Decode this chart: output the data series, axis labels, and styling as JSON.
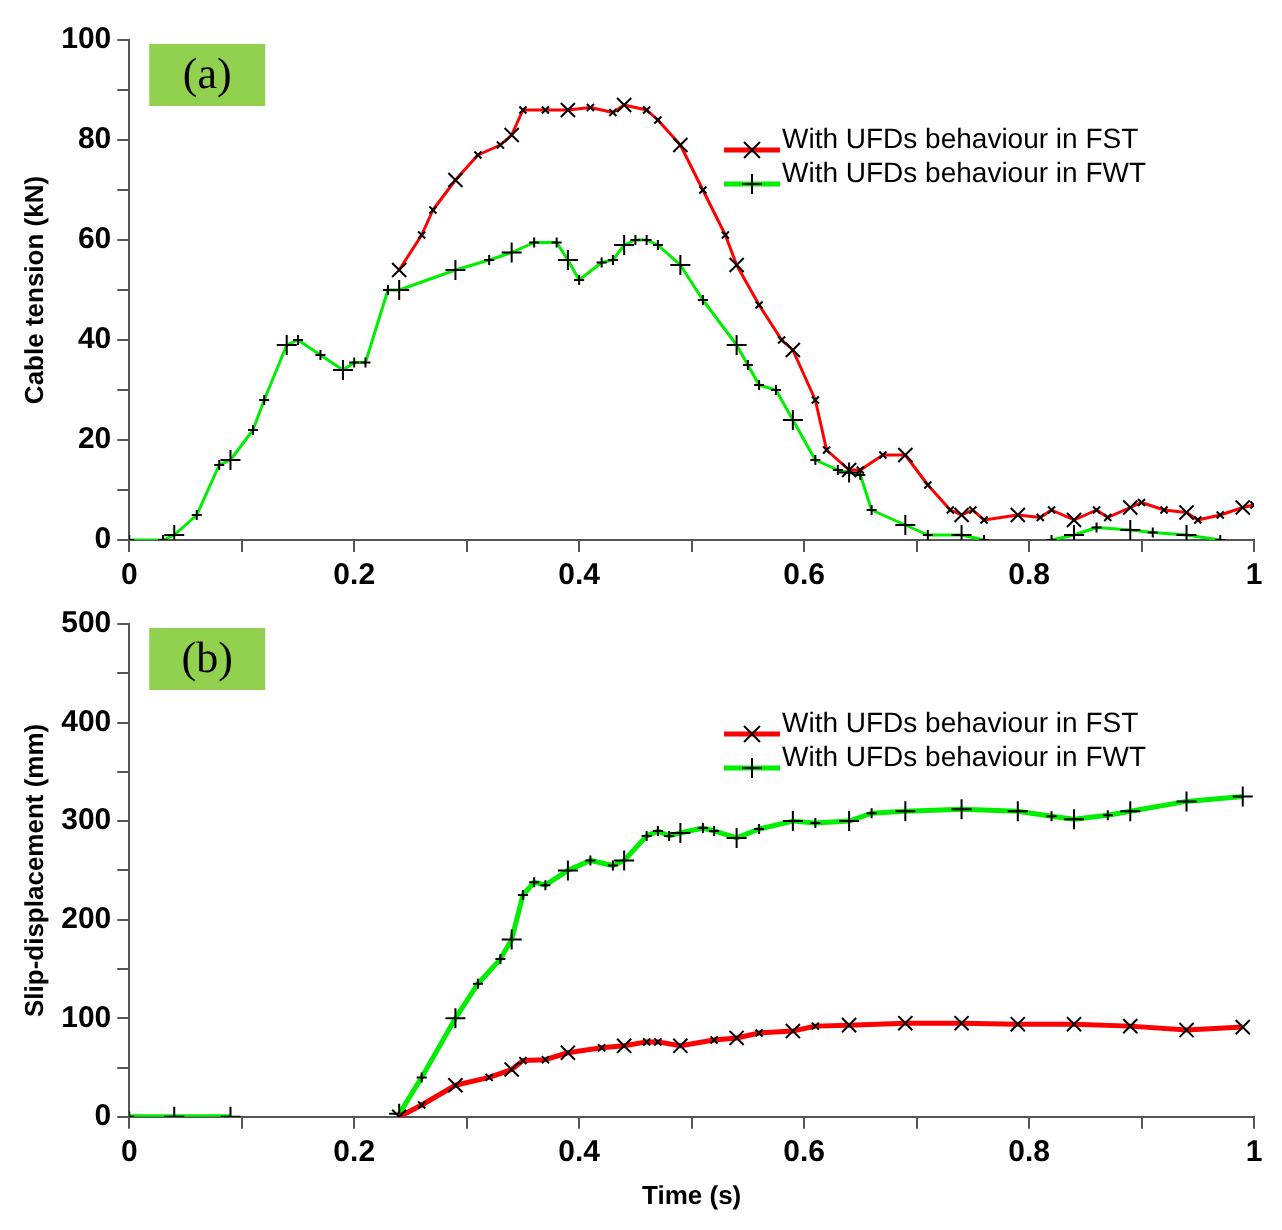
{
  "chart_data": [
    {
      "type": "line",
      "ylabel": "Cable tension (kN)",
      "xlim": [
        0,
        1
      ],
      "ylim": [
        0,
        100
      ],
      "xticks": [
        0,
        {
          "value": 0.1,
          "label": null
        },
        0.2,
        {
          "value": 0.3,
          "label": null
        },
        0.4,
        {
          "value": 0.5,
          "label": null
        },
        0.6,
        {
          "value": 0.7,
          "label": null
        },
        0.8,
        {
          "value": 0.9,
          "label": null
        },
        1
      ],
      "yticks": [
        0,
        {
          "value": 10,
          "label": null
        },
        20,
        {
          "value": 30,
          "label": null
        },
        40,
        {
          "value": 50,
          "label": null
        },
        60,
        {
          "value": 70,
          "label": null
        },
        80,
        {
          "value": 90,
          "label": null
        },
        100
      ],
      "legend": "top right",
      "marker": "cross",
      "line_style": "solid",
      "annotations": [
        "(a)"
      ],
      "series": [
        {
          "name": "With UFDs behaviour in FST",
          "color": "#ff0000",
          "x": [
            0.24,
            0.26,
            0.27,
            0.29,
            0.31,
            0.33,
            0.34,
            0.35,
            0.37,
            0.39,
            0.41,
            0.43,
            0.44,
            0.46,
            0.47,
            0.49,
            0.51,
            0.53,
            0.54,
            0.56,
            0.58,
            0.59,
            0.61,
            0.62,
            0.64,
            0.65,
            0.67,
            0.69,
            0.71,
            0.73,
            0.74,
            0.75,
            0.76,
            0.79,
            0.81,
            0.82,
            0.84,
            0.86,
            0.87,
            0.89,
            0.9,
            0.92,
            0.94,
            0.95,
            0.97,
            0.99,
            1.0
          ],
          "values": [
            54,
            61,
            66,
            72,
            77,
            79,
            81,
            86,
            86,
            86,
            86.5,
            85.5,
            87,
            86,
            84,
            79,
            70,
            61,
            55,
            47,
            40,
            38,
            28,
            18,
            14,
            14,
            17,
            17,
            11,
            6,
            5,
            6,
            4,
            5,
            4.5,
            6,
            4,
            6,
            4.5,
            6.5,
            7.5,
            6,
            5.5,
            4,
            5,
            6.5,
            7
          ]
        },
        {
          "name": "With UFDs behaviour in FWT",
          "color": "#00ee00",
          "x": [
            0,
            0.03,
            0.04,
            0.06,
            0.08,
            0.09,
            0.11,
            0.12,
            0.14,
            0.15,
            0.17,
            0.19,
            0.2,
            0.21,
            0.23,
            0.24,
            0.29,
            0.32,
            0.34,
            0.36,
            0.38,
            0.39,
            0.4,
            0.42,
            0.43,
            0.44,
            0.45,
            0.46,
            0.47,
            0.49,
            0.51,
            0.54,
            0.55,
            0.56,
            0.575,
            0.59,
            0.61,
            0.63,
            0.64,
            0.65,
            0.66,
            0.69,
            0.71,
            0.74,
            0.76,
            0.79,
            0.82,
            0.84,
            0.86,
            0.89,
            0.91,
            0.94,
            0.97
          ],
          "values": [
            0,
            0,
            1,
            5,
            15,
            16,
            22,
            28,
            39,
            40,
            37,
            34,
            35.5,
            35.5,
            50,
            50,
            54,
            56,
            57.5,
            59.5,
            59.5,
            56,
            52,
            55.5,
            56,
            59,
            60,
            60,
            59,
            55,
            48,
            39,
            35,
            31,
            30,
            24,
            16,
            14,
            13.5,
            13,
            6,
            3,
            1,
            1,
            0,
            null,
            0,
            1,
            2.5,
            2,
            1.5,
            1,
            0
          ]
        }
      ]
    },
    {
      "type": "line",
      "xlabel": "Time (s)",
      "ylabel": "Slip-displacement (mm)",
      "xlim": [
        0,
        1
      ],
      "ylim": [
        0,
        500
      ],
      "xticks": [
        0,
        {
          "value": 0.1,
          "label": null
        },
        0.2,
        {
          "value": 0.3,
          "label": null
        },
        0.4,
        {
          "value": 0.5,
          "label": null
        },
        0.6,
        {
          "value": 0.7,
          "label": null
        },
        0.8,
        {
          "value": 0.9,
          "label": null
        },
        1
      ],
      "yticks": [
        0,
        {
          "value": 50,
          "label": null
        },
        100,
        {
          "value": 150,
          "label": null
        },
        200,
        {
          "value": 250,
          "label": null
        },
        300,
        {
          "value": 350,
          "label": null
        },
        400,
        {
          "value": 450,
          "label": null
        },
        500
      ],
      "legend": "top right",
      "marker": "cross",
      "line_style": "solid",
      "annotations": [
        "(b)"
      ],
      "series": [
        {
          "name": "With UFDs behaviour in FST",
          "color": "#ff0000",
          "x": [
            0.24,
            0.26,
            0.29,
            0.32,
            0.34,
            0.35,
            0.37,
            0.39,
            0.42,
            0.44,
            0.46,
            0.47,
            0.49,
            0.52,
            0.54,
            0.56,
            0.59,
            0.61,
            0.64,
            0.69,
            0.74,
            0.79,
            0.84,
            0.89,
            0.94,
            0.99
          ],
          "values": [
            0,
            12,
            32,
            40,
            48,
            57,
            58,
            65,
            70,
            72,
            76,
            76,
            72,
            78,
            80,
            85,
            87,
            92,
            93,
            95,
            95,
            94,
            94,
            92,
            88,
            91
          ]
        },
        {
          "name": "With UFDs behaviour in FWT",
          "color": "#00ee00",
          "x": [
            0,
            0.04,
            0.09,
            0.16,
            0.24,
            0.26,
            0.29,
            0.31,
            0.33,
            0.34,
            0.35,
            0.36,
            0.37,
            0.39,
            0.41,
            0.43,
            0.44,
            0.46,
            0.47,
            0.48,
            0.49,
            0.51,
            0.52,
            0.54,
            0.56,
            0.59,
            0.61,
            0.64,
            0.66,
            0.69,
            0.74,
            0.79,
            0.82,
            0.84,
            0.87,
            0.89,
            0.94,
            0.99
          ],
          "values": [
            0,
            0,
            0,
            null,
            3,
            40,
            100,
            135,
            160,
            180,
            225,
            238,
            235,
            250,
            260,
            255,
            260,
            285,
            290,
            285,
            288,
            293,
            290,
            283,
            292,
            300,
            298,
            300,
            308,
            310,
            312,
            310,
            305,
            302,
            306,
            310,
            320,
            325
          ]
        }
      ]
    }
  ]
}
